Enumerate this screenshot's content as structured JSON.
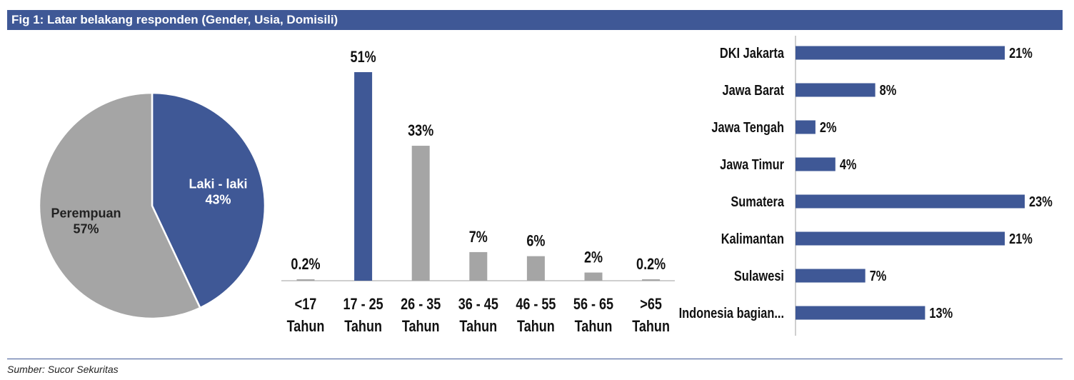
{
  "header": {
    "title": "Fig 1: Latar belakang responden (Gender, Usia, Domisili)"
  },
  "footer": {
    "source": "Sumber: Sucor Sekuritas"
  },
  "colors": {
    "primary": "#3f5896",
    "secondary": "#a5a5a5"
  },
  "chart_data": [
    {
      "type": "pie",
      "title": "",
      "slices": [
        {
          "name": "Laki - laki",
          "value": 43,
          "label": "43%",
          "color": "#3f5896"
        },
        {
          "name": "Perempuan",
          "value": 57,
          "label": "57%",
          "color": "#a5a5a5"
        }
      ]
    },
    {
      "type": "bar",
      "title": "",
      "categories": [
        [
          "<17",
          "Tahun"
        ],
        [
          "17 - 25",
          "Tahun"
        ],
        [
          "26 - 35",
          "Tahun"
        ],
        [
          "36 - 45",
          "Tahun"
        ],
        [
          "46 - 55",
          "Tahun"
        ],
        [
          "56 - 65",
          "Tahun"
        ],
        [
          ">65",
          "Tahun"
        ]
      ],
      "values": [
        0.2,
        51,
        33,
        7,
        6,
        2,
        0.2
      ],
      "labels": [
        "0.2%",
        "51%",
        "33%",
        "7%",
        "6%",
        "2%",
        "0.2%"
      ],
      "highlight_index": 1,
      "ylim": [
        0,
        51
      ]
    },
    {
      "type": "bar",
      "orientation": "horizontal",
      "title": "",
      "categories": [
        "DKI Jakarta",
        "Jawa Barat",
        "Jawa Tengah",
        "Jawa Timur",
        "Sumatera",
        "Kalimantan",
        "Sulawesi",
        "Indonesia bagian..."
      ],
      "values": [
        21,
        8,
        2,
        4,
        23,
        21,
        7,
        13
      ],
      "labels": [
        "21%",
        "8%",
        "2%",
        "4%",
        "23%",
        "21%",
        "7%",
        "13%"
      ],
      "xlim": [
        0,
        23
      ]
    }
  ]
}
